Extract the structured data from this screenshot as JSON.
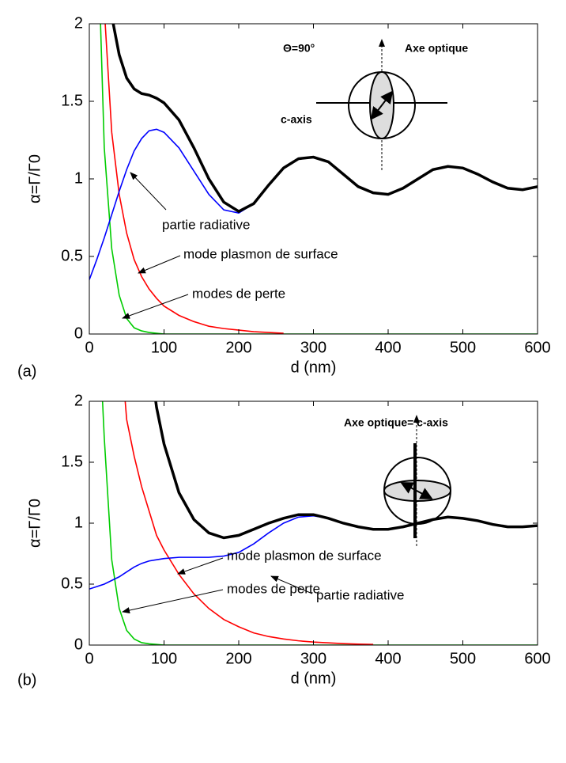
{
  "chart_data": [
    {
      "type": "line",
      "label": "(a)",
      "ylabel": "α=Γ/Γ0",
      "xlabel": "d (nm)",
      "xlim": [
        0,
        600
      ],
      "ylim": [
        0,
        2
      ],
      "xticks": [
        0,
        100,
        200,
        300,
        400,
        500,
        600
      ],
      "yticks": [
        0,
        0.5,
        1,
        1.5,
        2
      ],
      "x": [
        0,
        10,
        20,
        30,
        40,
        50,
        60,
        70,
        80,
        90,
        100,
        120,
        140,
        160,
        180,
        200,
        220,
        240,
        260,
        280,
        300,
        320,
        340,
        360,
        380,
        400,
        420,
        440,
        460,
        480,
        500,
        520,
        540,
        560,
        580,
        600
      ],
      "series": [
        {
          "color": "#00cc00",
          "values": [
            null,
            2.8,
            1.2,
            0.55,
            0.25,
            0.1,
            0.04,
            0.02,
            0.01,
            0.005,
            0,
            0,
            0,
            0,
            0,
            0,
            0,
            0,
            0,
            0,
            0,
            0,
            0,
            0,
            0,
            0,
            0,
            0,
            0,
            0,
            0,
            0,
            0,
            0,
            0,
            0
          ]
        },
        {
          "color": "#ff0000",
          "values": [
            null,
            4.0,
            2.1,
            1.3,
            0.9,
            0.65,
            0.48,
            0.37,
            0.29,
            0.23,
            0.18,
            0.12,
            0.08,
            0.05,
            0.035,
            0.025,
            0.015,
            0.01,
            0.005,
            null,
            null,
            null,
            null,
            null,
            null,
            null,
            null,
            null,
            null,
            null,
            null,
            null,
            null,
            null,
            null,
            null
          ]
        },
        {
          "color": "#0000ff",
          "values": [
            0.35,
            0.48,
            0.62,
            0.77,
            0.92,
            1.06,
            1.18,
            1.26,
            1.31,
            1.32,
            1.3,
            1.2,
            1.05,
            0.9,
            0.8,
            0.78,
            0.84,
            0.96,
            1.07,
            1.13,
            1.14,
            1.11,
            1.03,
            0.95,
            0.91,
            0.9,
            0.94,
            1.0,
            1.06,
            1.08,
            1.07,
            1.03,
            0.98,
            0.94,
            0.93,
            0.95
          ]
        },
        {
          "color": "#000000",
          "values": [
            null,
            null,
            2.6,
            2.05,
            1.8,
            1.65,
            1.58,
            1.55,
            1.54,
            1.52,
            1.49,
            1.38,
            1.2,
            1.0,
            0.85,
            0.79,
            0.84,
            0.96,
            1.07,
            1.13,
            1.14,
            1.11,
            1.03,
            0.95,
            0.91,
            0.9,
            0.94,
            1.0,
            1.06,
            1.08,
            1.07,
            1.03,
            0.98,
            0.94,
            0.93,
            0.95
          ]
        }
      ],
      "annotations": [
        "partie radiative",
        "mode plasmon de surface",
        "modes de perte"
      ],
      "inset": [
        "Θ=90°",
        "Axe optique",
        "c-axis"
      ]
    },
    {
      "type": "line",
      "label": "(b)",
      "ylabel": "α=Γ/Γ0",
      "xlabel": "d (nm)",
      "xlim": [
        0,
        600
      ],
      "ylim": [
        0,
        2
      ],
      "xticks": [
        0,
        100,
        200,
        300,
        400,
        500,
        600
      ],
      "yticks": [
        0,
        0.5,
        1,
        1.5,
        2
      ],
      "x": [
        0,
        10,
        20,
        30,
        40,
        50,
        60,
        70,
        80,
        90,
        100,
        120,
        140,
        160,
        180,
        200,
        220,
        240,
        260,
        280,
        300,
        320,
        340,
        360,
        380,
        400,
        420,
        440,
        460,
        480,
        500,
        520,
        540,
        560,
        580,
        600
      ],
      "series": [
        {
          "color": "#00cc00",
          "values": [
            null,
            3.0,
            1.7,
            0.7,
            0.3,
            0.12,
            0.05,
            0.02,
            0.01,
            0.005,
            0,
            0,
            0,
            0,
            0,
            0,
            0,
            0,
            0,
            0,
            0,
            0,
            0,
            0,
            0,
            0,
            0,
            0,
            0,
            0,
            0,
            0,
            0,
            0,
            0,
            0
          ]
        },
        {
          "color": "#ff0000",
          "values": [
            null,
            null,
            null,
            null,
            2.6,
            1.85,
            1.55,
            1.3,
            1.1,
            0.9,
            0.78,
            0.58,
            0.42,
            0.3,
            0.21,
            0.15,
            0.1,
            0.07,
            0.05,
            0.035,
            0.025,
            0.018,
            0.012,
            0.008,
            0.005,
            null,
            null,
            null,
            null,
            null,
            null,
            null,
            null,
            null,
            null,
            null
          ]
        },
        {
          "color": "#0000ff",
          "values": [
            0.46,
            0.48,
            0.5,
            0.53,
            0.56,
            0.6,
            0.64,
            0.67,
            0.69,
            0.7,
            0.71,
            0.72,
            0.72,
            0.72,
            0.73,
            0.76,
            0.83,
            0.92,
            1.0,
            1.05,
            1.06,
            1.04,
            1.0,
            0.97,
            0.95,
            0.95,
            0.97,
            1.0,
            1.03,
            1.05,
            1.04,
            1.02,
            0.99,
            0.97,
            0.97,
            0.98
          ]
        },
        {
          "color": "#000000",
          "values": [
            null,
            null,
            null,
            null,
            null,
            null,
            null,
            null,
            2.4,
            1.95,
            1.65,
            1.25,
            1.03,
            0.92,
            0.88,
            0.9,
            0.95,
            1.0,
            1.04,
            1.07,
            1.07,
            1.04,
            1.0,
            0.97,
            0.95,
            0.95,
            0.97,
            1.0,
            1.03,
            1.05,
            1.04,
            1.02,
            0.99,
            0.97,
            0.97,
            0.98
          ]
        }
      ],
      "annotations": [
        "partie radiative",
        "mode plasmon de surface",
        "modes de perte"
      ],
      "inset": [
        "Axe optique= c-axis"
      ]
    }
  ]
}
